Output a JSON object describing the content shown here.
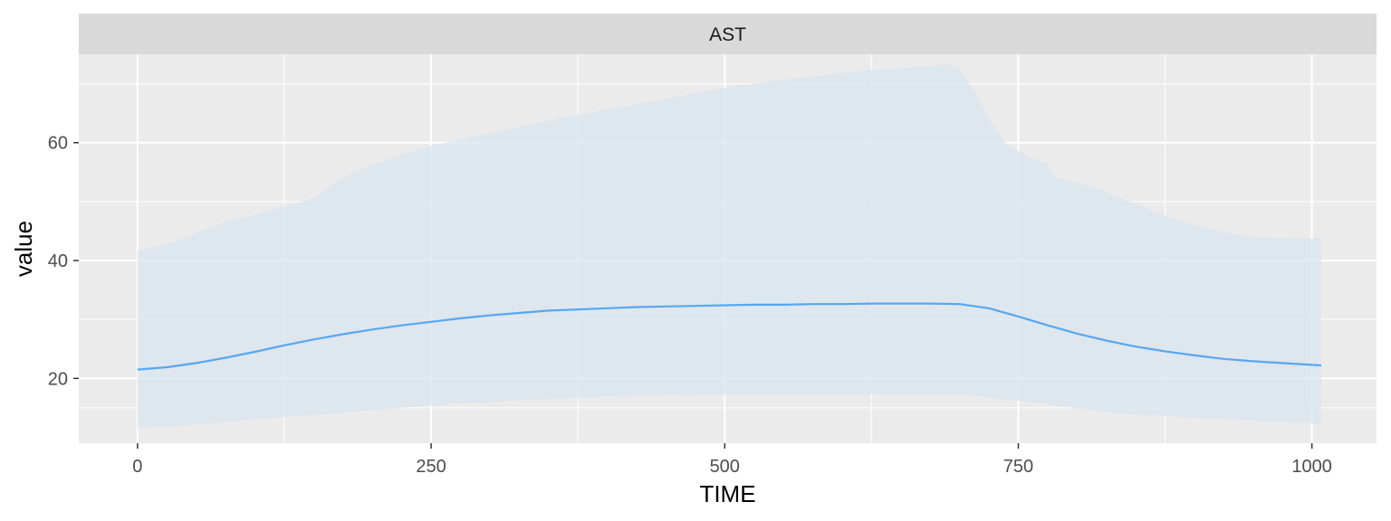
{
  "chart_data": {
    "type": "area",
    "facet_label": "AST",
    "xlabel": "TIME",
    "ylabel": "value",
    "xlim": [
      -50,
      1055
    ],
    "ylim": [
      9,
      75
    ],
    "x_ticks": [
      0,
      250,
      500,
      750,
      1000
    ],
    "y_ticks": [
      20,
      40,
      60
    ],
    "grid": true,
    "series": [
      {
        "type": "line",
        "color": "#56a8f0",
        "x": [
          0,
          25,
          50,
          75,
          100,
          125,
          150,
          175,
          200,
          225,
          250,
          275,
          300,
          325,
          350,
          375,
          400,
          425,
          450,
          475,
          500,
          525,
          550,
          575,
          600,
          625,
          650,
          675,
          700,
          725,
          750,
          775,
          800,
          825,
          850,
          875,
          900,
          925,
          950,
          975,
          1008
        ],
        "y": [
          21.5,
          21.9,
          22.6,
          23.5,
          24.5,
          25.6,
          26.6,
          27.5,
          28.3,
          29.0,
          29.6,
          30.2,
          30.7,
          31.1,
          31.5,
          31.7,
          31.9,
          32.1,
          32.2,
          32.3,
          32.4,
          32.5,
          32.5,
          32.6,
          32.6,
          32.7,
          32.7,
          32.7,
          32.6,
          31.9,
          30.5,
          29.0,
          27.6,
          26.4,
          25.4,
          24.6,
          23.9,
          23.3,
          22.9,
          22.6,
          22.2
        ]
      },
      {
        "type": "ribbon",
        "color": "#dae4ef",
        "x": [
          0,
          25,
          50,
          75,
          100,
          125,
          150,
          175,
          200,
          225,
          250,
          275,
          300,
          325,
          350,
          375,
          400,
          425,
          450,
          475,
          500,
          525,
          550,
          575,
          600,
          625,
          650,
          675,
          690,
          700,
          715,
          725,
          740,
          760,
          775,
          780,
          800,
          825,
          850,
          875,
          900,
          925,
          950,
          975,
          1008
        ],
        "upper": [
          41.7,
          42.7,
          44.7,
          46.6,
          47.7,
          49.2,
          50.6,
          54.2,
          56.2,
          58.0,
          59.5,
          60.5,
          61.6,
          62.6,
          63.7,
          64.7,
          65.6,
          66.5,
          67.4,
          68.4,
          69.3,
          70.0,
          70.7,
          71.3,
          71.8,
          72.3,
          72.7,
          73.0,
          73.3,
          72.5,
          68.0,
          64.0,
          59.8,
          57.5,
          56.5,
          54.2,
          53.2,
          51.6,
          49.6,
          47.6,
          46.0,
          44.8,
          44.0,
          43.8,
          43.7
        ],
        "lower": [
          11.5,
          11.8,
          12.2,
          12.6,
          13.0,
          13.4,
          13.8,
          14.2,
          14.6,
          15.0,
          15.4,
          15.7,
          16.0,
          16.3,
          16.5,
          16.7,
          16.9,
          17.0,
          17.1,
          17.2,
          17.2,
          17.3,
          17.3,
          17.3,
          17.3,
          17.3,
          17.3,
          17.3,
          17.3,
          17.2,
          16.9,
          16.7,
          16.4,
          16.0,
          15.6,
          15.4,
          14.9,
          14.3,
          13.9,
          13.6,
          13.3,
          13.0,
          12.8,
          12.6,
          12.3
        ]
      }
    ]
  }
}
